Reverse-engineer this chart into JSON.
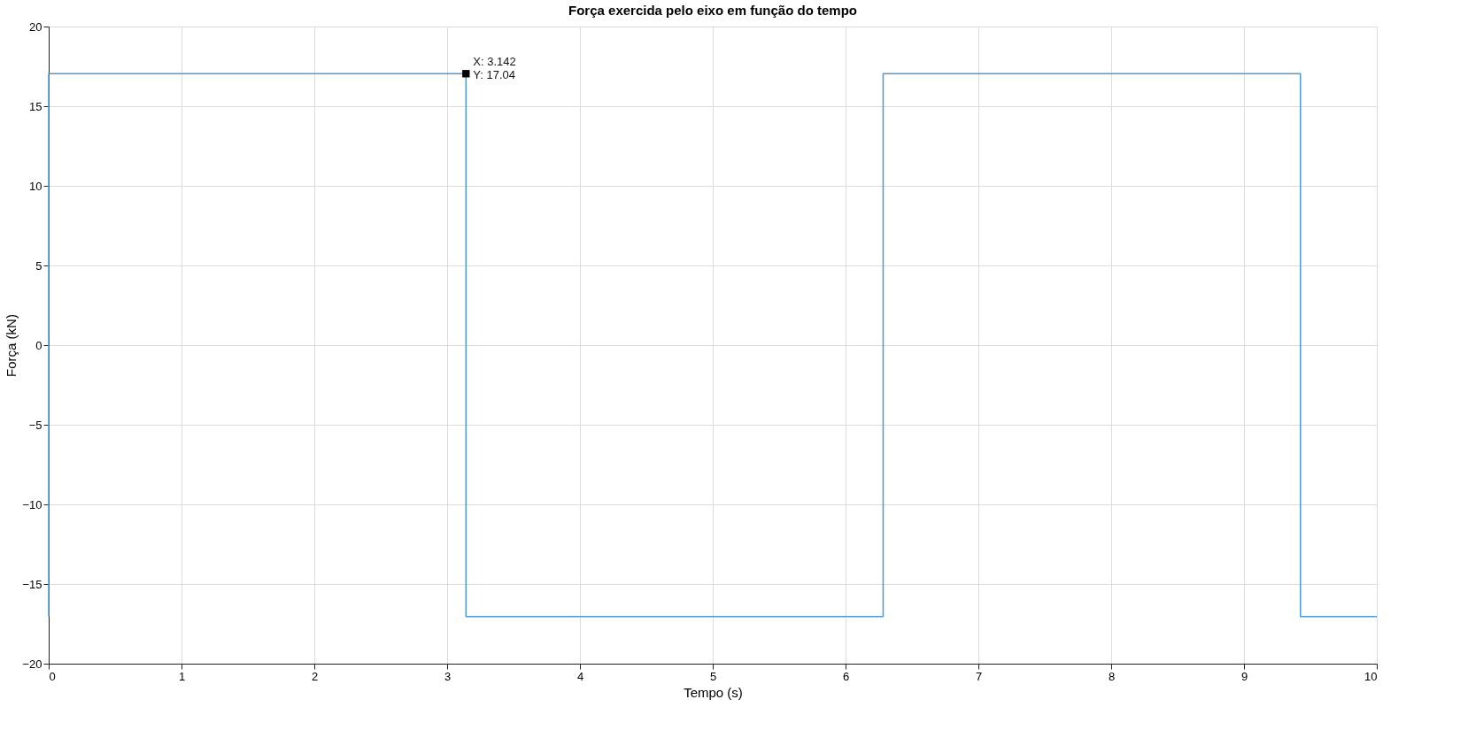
{
  "chart_data": {
    "type": "line",
    "title": "Força exercida pelo eixo em função do tempo",
    "xlabel": "Tempo (s)",
    "ylabel": "Força (kN)",
    "x": [
      0,
      0,
      3.142,
      3.142,
      6.283,
      6.283,
      9.425,
      9.425,
      10
    ],
    "series": [
      {
        "color": "#4d9ad6",
        "values": [
          -17.04,
          17.04,
          17.04,
          -17.04,
          -17.04,
          17.04,
          17.04,
          -17.04,
          -17.04
        ]
      }
    ],
    "xlim": [
      0,
      10
    ],
    "xticks": [
      0,
      1,
      2,
      3,
      4,
      5,
      6,
      7,
      8,
      9,
      10
    ],
    "ylim": [
      -20,
      20
    ],
    "yticks": [
      -20,
      -15,
      -10,
      -5,
      0,
      5,
      10,
      15,
      20
    ],
    "grid": true,
    "marker": "none",
    "line_style": "solid",
    "annotations": [
      {
        "text": "X: 3.142\nY: 17.04",
        "x": 3.142,
        "y": 17.04
      }
    ]
  }
}
